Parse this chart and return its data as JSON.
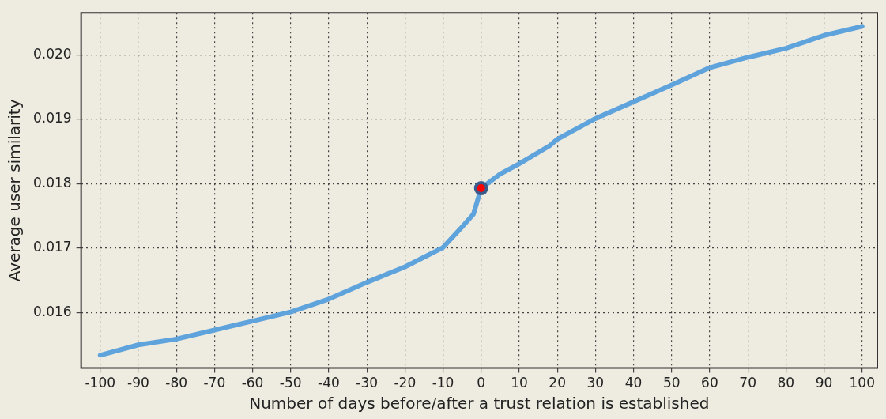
{
  "chart_data": {
    "type": "line",
    "xlabel": "Number of days before/after a trust relation is established",
    "ylabel": "Average user similarity",
    "xlim": [
      -105,
      104
    ],
    "xticks": [
      -100,
      -90,
      -80,
      -70,
      -60,
      -50,
      -40,
      -30,
      -20,
      -10,
      0,
      10,
      20,
      30,
      40,
      50,
      60,
      70,
      80,
      90,
      100
    ],
    "ylim": [
      0.01514,
      0.02065
    ],
    "yticks": [
      {
        "value": 0.016,
        "label": "0.016"
      },
      {
        "value": 0.017,
        "label": "0.017"
      },
      {
        "value": 0.018,
        "label": "0.018"
      },
      {
        "value": 0.019,
        "label": "0.019"
      },
      {
        "value": 0.02,
        "label": "0.020"
      }
    ],
    "grid": true,
    "legend": false,
    "marker": "none",
    "line_style": "solid",
    "series": [
      {
        "color": "#5fa3dc",
        "x": [
          -100,
          -90,
          -80,
          -70,
          -60,
          -50,
          -40,
          -30,
          -20,
          -10,
          -5,
          -2,
          0,
          5,
          10,
          18,
          20,
          30,
          40,
          50,
          60,
          70,
          80,
          90,
          100
        ],
        "values": [
          0.01534,
          0.0155,
          0.01559,
          0.01573,
          0.01587,
          0.01601,
          0.01621,
          0.01647,
          0.01671,
          0.01701,
          0.01733,
          0.01753,
          0.01793,
          0.01815,
          0.01831,
          0.01859,
          0.01869,
          0.01901,
          0.01927,
          0.01953,
          0.0198,
          0.01996,
          0.0201,
          0.0203,
          0.02044
        ]
      },
      {
        "type": "scatter",
        "color": "#ff0000",
        "marker": "circle",
        "x": [
          0
        ],
        "values": [
          0.01793
        ]
      }
    ]
  }
}
